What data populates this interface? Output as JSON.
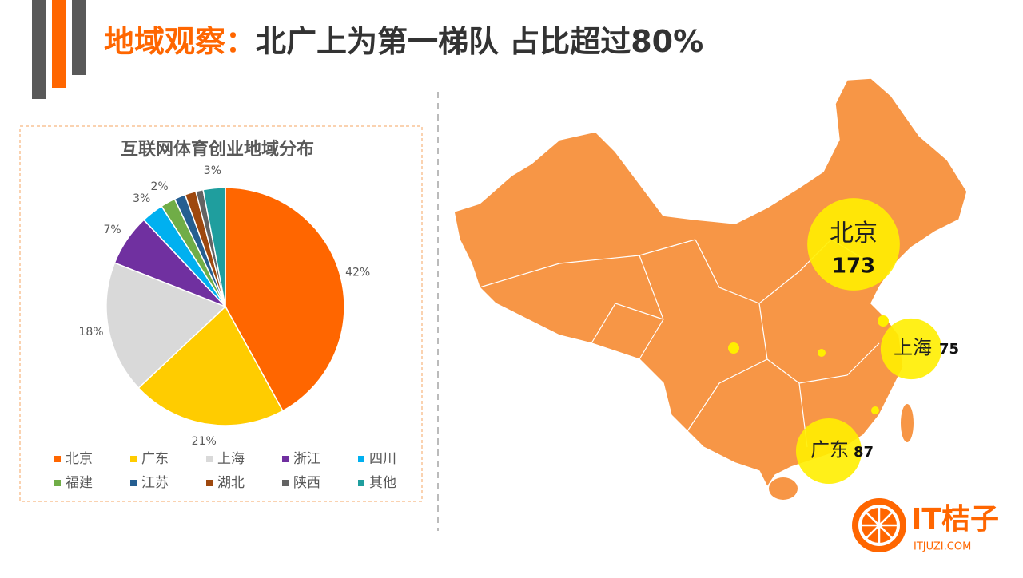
{
  "header": {
    "title_highlight": "地域观察：",
    "title_rest": "北广上为第一梯队 占比超过80%"
  },
  "chart_data": {
    "type": "pie",
    "title": "互联网体育创业地域分布",
    "categories": [
      "北京",
      "广东",
      "上海",
      "浙江",
      "四川",
      "福建",
      "江苏",
      "湖北",
      "陕西",
      "其他"
    ],
    "values": [
      42,
      21,
      18,
      7,
      3,
      2,
      1.5,
      1.5,
      1,
      3
    ],
    "value_labels": [
      "42%",
      "21%",
      "18%",
      "7%",
      "3%",
      "2%",
      null,
      null,
      null,
      "3%"
    ],
    "colors": [
      "#ff6600",
      "#ffcc00",
      "#d9d9d9",
      "#7030a0",
      "#00b0f0",
      "#70ad47",
      "#255e91",
      "#9e480e",
      "#636363",
      "#1f9e9e"
    ]
  },
  "map": {
    "bubbles": [
      {
        "label": "北京",
        "value": 173
      },
      {
        "label": "上海",
        "value": 75
      },
      {
        "label": "广东",
        "value": 87
      }
    ]
  },
  "logo": {
    "name": "IT桔子",
    "url": "ITJUZI.COM"
  }
}
